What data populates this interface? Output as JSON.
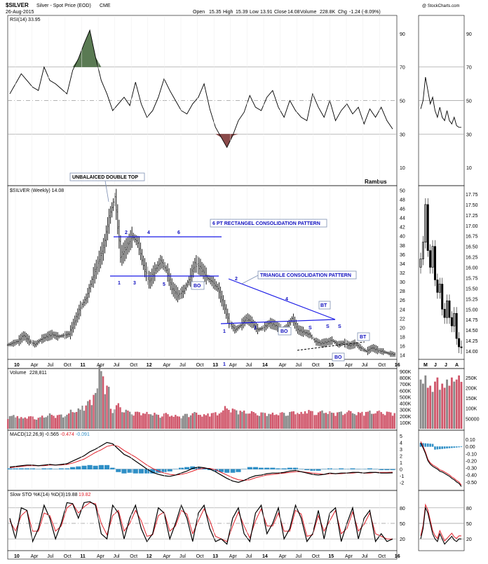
{
  "header": {
    "ticker": "$SILVER",
    "description": "Silver - Spot Price (EOD)",
    "exchange": "CME",
    "date": "26-Aug-2015",
    "open_label": "Open",
    "open": "15.35",
    "high_label": "High",
    "high": "15.39",
    "low_label": "Low",
    "low": "13.91",
    "close_label": "Close",
    "close": "14.08",
    "volume_label": "Volume",
    "volume": "228.8K",
    "change_label": "Chg",
    "change": "-1.24 (-8.09%)",
    "watermark": "@ StockCharts.com"
  },
  "colors": {
    "up": "#000000",
    "down": "#000000",
    "volume_up": "#888888",
    "volume_down": "#d0576b",
    "pattern_line": "#1a1ae6",
    "rsi_overbought_fill": "#5a7a53",
    "rsi_oversold_fill": "#8a4a4a",
    "macd_line": "#000000",
    "macd_signal": "#e0202a",
    "macd_hist": "#2f8fc6",
    "sto_k": "#000000",
    "sto_d": "#e0202a"
  },
  "labels": {
    "rsi": "RSI(14) 33.95",
    "price": "$SILVER (Weekly) 14.08",
    "volume_label": "Volume",
    "volume_value": "228,811",
    "macd_label": "MACD(12,26,9)",
    "macd_a": "-0.565",
    "macd_b": "-0.474",
    "macd_c": "-0.091",
    "sto_label": "Slow STO %K(14) %D(3)",
    "sto_k": "19.88",
    "sto_d": "19.82",
    "author": "Rambus"
  },
  "chart_data": [
    {
      "type": "line",
      "panel": "RSI(14) weekly",
      "ylim": [
        0,
        100
      ],
      "gridlines": [
        30,
        50,
        70
      ],
      "ticks": [
        "90",
        "70",
        "50",
        "30",
        "10"
      ],
      "x_start": "2009-09",
      "x_end": "2015-08",
      "interval": "monthly",
      "values": [
        54,
        60,
        66,
        62,
        58,
        56,
        70,
        62,
        60,
        57,
        54,
        68,
        75,
        84,
        92,
        76,
        62,
        54,
        44,
        48,
        52,
        47,
        61,
        48,
        40,
        44,
        52,
        63,
        56,
        50,
        44,
        42,
        48,
        52,
        60,
        45,
        34,
        28,
        22,
        29,
        38,
        43,
        53,
        46,
        44,
        52,
        56,
        46,
        40,
        50,
        44,
        40,
        38,
        54,
        46,
        40,
        50,
        38,
        44,
        48,
        42,
        46,
        36,
        45,
        40,
        46,
        38,
        33
      ]
    },
    {
      "type": "bar",
      "panel": "$SILVER (Weekly)",
      "ylim": [
        13.5,
        50.5
      ],
      "ticks": [
        "50",
        "48",
        "46",
        "44",
        "42",
        "40",
        "38",
        "36",
        "34",
        "32",
        "30",
        "28",
        "26",
        "24",
        "22",
        "20",
        "18",
        "16",
        "14"
      ],
      "x_ticks": [
        "10",
        "Apr",
        "Jul",
        "Oct",
        "11",
        "Apr",
        "Jul",
        "Oct",
        "12",
        "Apr",
        "Jul",
        "Oct",
        "13",
        "Apr",
        "Jul",
        "14",
        "Apr",
        "Jul",
        "Oct",
        "15",
        "Apr",
        "Jul",
        "Oct",
        "16"
      ],
      "x_start": "2009-09",
      "x_end": "2015-08",
      "interval": "monthly",
      "close": [
        16.5,
        17.0,
        18.3,
        17.0,
        16.3,
        17.4,
        18.0,
        18.5,
        18.0,
        18.3,
        18.6,
        21.5,
        24.5,
        26.5,
        30.5,
        34.0,
        37.5,
        44.0,
        48.5,
        35.5,
        37.5,
        40.0,
        38.5,
        33.5,
        30.0,
        32.5,
        34.5,
        32.5,
        28.5,
        27.0,
        28.0,
        30.5,
        34.0,
        33.0,
        31.0,
        30.0,
        28.5,
        25.0,
        21.0,
        19.5,
        20.5,
        22.0,
        21.0,
        19.5,
        20.0,
        21.0,
        20.5,
        19.5,
        20.0,
        22.0,
        19.5,
        19.0,
        18.5,
        17.0,
        16.5,
        16.8,
        17.2,
        16.3,
        16.7,
        16.0,
        16.5,
        15.5,
        14.8,
        15.6,
        15.0,
        14.7,
        14.3,
        14.08
      ]
    },
    {
      "type": "bar",
      "panel": "Volume",
      "ylim": [
        0,
        900000
      ],
      "ticks": [
        "900K",
        "800K",
        "700K",
        "600K",
        "500K",
        "400K",
        "300K",
        "200K",
        "100K"
      ],
      "values": [
        180000,
        190000,
        160000,
        170000,
        175000,
        160000,
        180000,
        210000,
        190000,
        200000,
        210000,
        260000,
        280000,
        330000,
        400000,
        550000,
        870000,
        600000,
        280000,
        350000,
        260000,
        250000,
        240000,
        230000,
        230000,
        220000,
        200000,
        220000,
        200000,
        190000,
        180000,
        210000,
        230000,
        220000,
        200000,
        220000,
        230000,
        250000,
        310000,
        280000,
        260000,
        250000,
        240000,
        230000,
        230000,
        220000,
        220000,
        220000,
        230000,
        240000,
        240000,
        230000,
        260000,
        250000,
        240000,
        250000,
        240000,
        230000,
        240000,
        250000,
        240000,
        230000,
        240000,
        250000,
        240000,
        250000,
        240000,
        228811
      ]
    },
    {
      "type": "line",
      "panel": "MACD(12,26,9)",
      "ylim": [
        -3,
        5
      ],
      "ticks": [
        "5",
        "4",
        "3",
        "2",
        "1",
        "0",
        "-1",
        "-2"
      ],
      "macd": [
        0.3,
        0.4,
        0.5,
        0.6,
        0.6,
        0.5,
        0.6,
        0.7,
        0.6,
        0.7,
        0.8,
        1.2,
        1.6,
        2.0,
        2.6,
        3.0,
        3.5,
        4.0,
        3.8,
        3.0,
        2.2,
        1.8,
        1.2,
        0.6,
        0.0,
        -0.5,
        -0.8,
        -1.0,
        -1.1,
        -0.9,
        -0.6,
        -0.3,
        0.1,
        0.3,
        0.2,
        0.0,
        -0.4,
        -0.9,
        -1.4,
        -1.8,
        -2.0,
        -1.7,
        -1.3,
        -1.0,
        -0.9,
        -0.7,
        -0.6,
        -0.6,
        -0.5,
        -0.3,
        -0.2,
        -0.4,
        -0.6,
        -0.8,
        -0.9,
        -0.8,
        -0.6,
        -0.7,
        -0.6,
        -0.6,
        -0.5,
        -0.5,
        -0.6,
        -0.5,
        -0.5,
        -0.6,
        -0.6,
        -0.565
      ],
      "signal": [
        0.2,
        0.3,
        0.4,
        0.5,
        0.5,
        0.5,
        0.5,
        0.6,
        0.6,
        0.6,
        0.7,
        0.9,
        1.2,
        1.5,
        2.0,
        2.5,
        2.9,
        3.4,
        3.6,
        3.4,
        2.8,
        2.3,
        1.8,
        1.2,
        0.6,
        0.1,
        -0.3,
        -0.6,
        -0.8,
        -0.9,
        -0.8,
        -0.6,
        -0.3,
        0.0,
        0.1,
        0.1,
        -0.1,
        -0.5,
        -0.9,
        -1.3,
        -1.6,
        -1.7,
        -1.6,
        -1.3,
        -1.1,
        -0.9,
        -0.8,
        -0.7,
        -0.6,
        -0.5,
        -0.4,
        -0.4,
        -0.5,
        -0.6,
        -0.7,
        -0.8,
        -0.7,
        -0.7,
        -0.7,
        -0.6,
        -0.6,
        -0.5,
        -0.6,
        -0.6,
        -0.5,
        -0.5,
        -0.5,
        -0.474
      ]
    },
    {
      "type": "line",
      "panel": "Slow STO %K(14) %D(3)",
      "ylim": [
        0,
        100
      ],
      "gridlines": [
        20,
        50,
        80
      ],
      "ticks": [
        "80",
        "50",
        "20"
      ],
      "k": [
        60,
        20,
        80,
        75,
        15,
        40,
        85,
        60,
        20,
        50,
        90,
        88,
        60,
        90,
        92,
        85,
        30,
        20,
        85,
        70,
        20,
        60,
        85,
        40,
        15,
        30,
        80,
        70,
        20,
        50,
        85,
        60,
        15,
        70,
        85,
        40,
        15,
        20,
        10,
        60,
        80,
        30,
        15,
        70,
        85,
        30,
        50,
        80,
        20,
        40,
        85,
        60,
        15,
        30,
        75,
        20,
        70,
        80,
        15,
        50,
        80,
        20,
        60,
        75,
        15,
        30,
        15,
        19.88
      ],
      "d": [
        55,
        35,
        65,
        75,
        35,
        35,
        70,
        65,
        35,
        45,
        80,
        88,
        70,
        82,
        90,
        88,
        50,
        28,
        65,
        75,
        35,
        50,
        75,
        55,
        25,
        28,
        65,
        72,
        35,
        45,
        75,
        68,
        30,
        55,
        78,
        55,
        25,
        20,
        15,
        45,
        72,
        45,
        22,
        55,
        78,
        45,
        45,
        70,
        35,
        35,
        75,
        68,
        25,
        28,
        65,
        35,
        55,
        75,
        30,
        40,
        72,
        35,
        48,
        70,
        30,
        25,
        20,
        19.82
      ]
    }
  ],
  "annotations": {
    "double_top": "UNBALAICED DOUBLE TOP",
    "rectangle": "6 PT RECTANGEL CONSOLIDATION PATTERN",
    "triangle": "TRIANGLE CONSOLIDATION PATTERN",
    "bo": "BO",
    "bt": "BT",
    "s": "S",
    "n1": "1",
    "n2": "2",
    "n3": "3",
    "n4": "4",
    "n5": "5",
    "n6": "6"
  },
  "side_panel": {
    "x_ticks": [
      "M",
      "J",
      "J",
      "A"
    ],
    "price_ticks": [
      "17.75",
      "17.50",
      "17.25",
      "17.00",
      "16.75",
      "16.50",
      "16.25",
      "16.00",
      "15.75",
      "15.50",
      "15.25",
      "15.00",
      "14.75",
      "14.50",
      "14.25",
      "14.00"
    ],
    "rsi_ticks": [
      "90",
      "70",
      "50",
      "30",
      "10"
    ],
    "volume_ticks": [
      "250K",
      "200K",
      "150K",
      "100K",
      "50000"
    ],
    "macd_ticks": [
      "0.10",
      "0.00",
      "-0.10",
      "-0.20",
      "-0.30",
      "-0.40",
      "-0.50"
    ],
    "sto_ticks": [
      "80",
      "50",
      "20"
    ],
    "price_close": [
      16.2,
      16.6,
      17.5,
      16.4,
      16.0,
      16.5,
      15.7,
      15.4,
      15.6,
      15.0,
      14.8,
      15.2,
      14.8,
      14.6,
      14.9,
      14.3,
      14.1,
      14.08
    ],
    "rsi": [
      45,
      50,
      64,
      56,
      48,
      52,
      44,
      40,
      46,
      40,
      38,
      44,
      38,
      36,
      40,
      35,
      34,
      33.95
    ],
    "volume": [
      240000,
      220000,
      260000,
      200000,
      210000,
      180000,
      230000,
      250000,
      190000,
      220000,
      200000,
      240000,
      210000,
      250000,
      230000,
      240000,
      260000,
      228811
    ],
    "macd": [
      0.05,
      -0.02,
      -0.1,
      -0.2,
      -0.25,
      -0.28,
      -0.3,
      -0.32,
      -0.35,
      -0.36,
      -0.38,
      -0.4,
      -0.42,
      -0.45,
      -0.47,
      -0.5,
      -0.52,
      -0.565
    ],
    "sto_k": [
      20,
      40,
      80,
      70,
      50,
      30,
      20,
      15,
      30,
      20,
      10,
      15,
      20,
      25,
      18,
      15,
      20,
      19.88
    ]
  }
}
